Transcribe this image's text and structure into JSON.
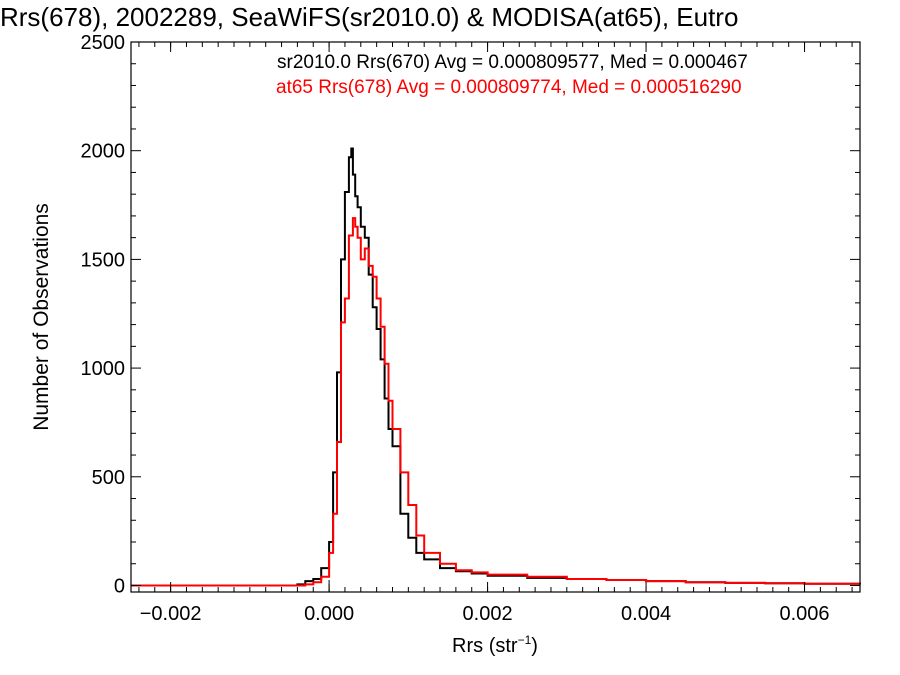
{
  "chart_data": {
    "type": "line",
    "title": "Rrs(678), 2002289, SeaWiFS(sr2010.0) & MODISA(at65), Eutro",
    "xlabel_main": "Rrs (str",
    "xlabel_sup": "−1",
    "xlabel_close": ")",
    "ylabel": "Number of Observations",
    "xlim": [
      -0.0025,
      0.0067
    ],
    "ylim": [
      -30,
      2500
    ],
    "x_ticks": [
      {
        "value": -0.002,
        "label": "−0.002"
      },
      {
        "value": 0.0,
        "label": "0.000"
      },
      {
        "value": 0.002,
        "label": "0.002"
      },
      {
        "value": 0.004,
        "label": "0.004"
      },
      {
        "value": 0.006,
        "label": "0.006"
      }
    ],
    "y_ticks": [
      {
        "value": 0,
        "label": "0"
      },
      {
        "value": 500,
        "label": "500"
      },
      {
        "value": 1000,
        "label": "1000"
      },
      {
        "value": 1500,
        "label": "1500"
      },
      {
        "value": 2000,
        "label": "2000"
      },
      {
        "value": 2500,
        "label": "2500"
      }
    ],
    "grid": false,
    "legend_placement": "top-right",
    "series": [
      {
        "name": "sr2010.0 Rrs(670) Avg = 0.000809577, Med = 0.000467",
        "color": "#000000",
        "x": [
          -0.0025,
          -0.0004,
          -0.0003,
          -0.0002,
          -0.0001,
          0.0,
          5e-05,
          0.0001,
          0.00015,
          0.0002,
          0.00025,
          0.00028,
          0.0003,
          0.00033,
          0.00036,
          0.0004,
          0.00045,
          0.0005,
          0.00055,
          0.0006,
          0.00065,
          0.0007,
          0.00075,
          0.0008,
          0.0009,
          0.001,
          0.0011,
          0.0012,
          0.0014,
          0.0016,
          0.0018,
          0.002,
          0.0025,
          0.003,
          0.0035,
          0.004,
          0.0045,
          0.005,
          0.0055,
          0.006,
          0.0067
        ],
        "y": [
          0,
          5,
          20,
          30,
          80,
          200,
          520,
          980,
          1500,
          1810,
          1970,
          2010,
          1890,
          1790,
          1740,
          1650,
          1600,
          1430,
          1280,
          1180,
          1040,
          860,
          720,
          640,
          330,
          220,
          150,
          120,
          80,
          65,
          55,
          45,
          35,
          30,
          25,
          20,
          15,
          12,
          10,
          8,
          5
        ]
      },
      {
        "name": "at65 Rrs(678) Avg = 0.000809774, Med = 0.000516290",
        "color": "#ff0000",
        "x": [
          -0.0025,
          -0.0004,
          -0.0003,
          -0.0002,
          -0.0001,
          0.0,
          5e-05,
          0.0001,
          0.00015,
          0.0002,
          0.00025,
          0.0003,
          0.00033,
          0.00036,
          0.0004,
          0.00045,
          0.0005,
          0.00055,
          0.0006,
          0.00065,
          0.0007,
          0.00075,
          0.0008,
          0.0009,
          0.001,
          0.0011,
          0.0012,
          0.0014,
          0.0016,
          0.0018,
          0.002,
          0.0025,
          0.003,
          0.0035,
          0.004,
          0.0045,
          0.005,
          0.0055,
          0.006,
          0.0067
        ],
        "y": [
          0,
          0,
          5,
          15,
          40,
          150,
          330,
          660,
          1210,
          1320,
          1610,
          1690,
          1650,
          1600,
          1500,
          1550,
          1470,
          1420,
          1320,
          1190,
          1020,
          850,
          720,
          520,
          370,
          230,
          150,
          100,
          70,
          60,
          50,
          40,
          30,
          25,
          20,
          15,
          12,
          10,
          8,
          5
        ]
      }
    ]
  }
}
